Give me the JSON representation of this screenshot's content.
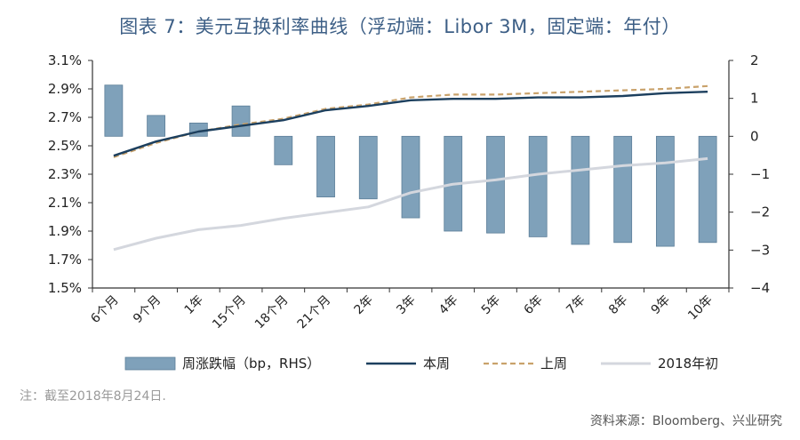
{
  "title": "图表 7：美元互换利率曲线（浮动端：Libor 3M，固定端：年付）",
  "note": "注：截至2018年8月24日.",
  "source": "资料来源：Bloomberg、兴业研究",
  "colors": {
    "bar_fill": "#7fa1ba",
    "bar_stroke": "#5d7f99",
    "this_week": "#1c3f5e",
    "last_week": "#c9a26b",
    "start_of_year": "#d4d7de"
  },
  "chart_data": {
    "type": "bar+line",
    "categories": [
      "6个月",
      "9个月",
      "1年",
      "15个月",
      "18个月",
      "21个月",
      "2年",
      "3年",
      "4年",
      "5年",
      "6年",
      "7年",
      "8年",
      "9年",
      "10年"
    ],
    "left_axis": {
      "ylim": [
        1.5,
        3.1
      ],
      "ticks": [
        "1.5%",
        "1.7%",
        "1.9%",
        "2.1%",
        "2.3%",
        "2.5%",
        "2.7%",
        "2.9%",
        "3.1%"
      ]
    },
    "right_axis": {
      "ylim": [
        -4,
        2
      ],
      "ticks": [
        "-4",
        "-3",
        "-2",
        "-1",
        "0",
        "1",
        "2"
      ]
    },
    "bars": {
      "name": "周涨跌幅（bp，RHS）",
      "axis": "right",
      "values": [
        1.35,
        0.55,
        0.35,
        0.8,
        -0.75,
        -1.6,
        -1.65,
        -2.15,
        -2.5,
        -2.55,
        -2.65,
        -2.85,
        -2.8,
        -2.9,
        -2.8
      ]
    },
    "series": [
      {
        "name": "本周",
        "axis": "left",
        "style": "solid",
        "values": [
          2.43,
          2.53,
          2.6,
          2.64,
          2.68,
          2.75,
          2.78,
          2.82,
          2.83,
          2.83,
          2.84,
          2.84,
          2.85,
          2.87,
          2.88
        ]
      },
      {
        "name": "上周",
        "axis": "left",
        "style": "dashed",
        "values": [
          2.42,
          2.52,
          2.6,
          2.65,
          2.69,
          2.76,
          2.79,
          2.84,
          2.86,
          2.86,
          2.87,
          2.88,
          2.89,
          2.9,
          2.92
        ]
      },
      {
        "name": "2018年初",
        "axis": "left",
        "style": "solid",
        "values": [
          1.77,
          1.85,
          1.91,
          1.94,
          1.99,
          2.03,
          2.07,
          2.17,
          2.23,
          2.26,
          2.3,
          2.33,
          2.36,
          2.38,
          2.41
        ]
      }
    ],
    "legend": {
      "position": "bottom",
      "entries": [
        "周涨跌幅（bp，RHS）",
        "本周",
        "上周",
        "2018年初"
      ]
    }
  }
}
